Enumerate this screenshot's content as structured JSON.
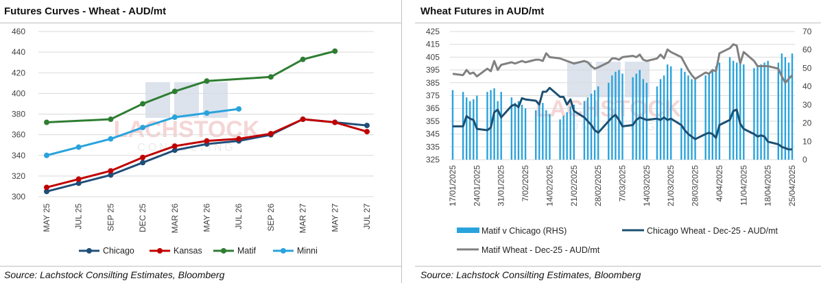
{
  "left": {
    "title": "Futures Curves - Wheat - AUD/mt",
    "source": "Source: Lachstock Consilting Estimates, Bloomberg",
    "watermark": {
      "line1": "LACHSTOCK",
      "line2": "CONSULTING"
    },
    "chart_data": {
      "type": "line",
      "title": "Futures Curves - Wheat - AUD/mt",
      "categories": [
        "MAY 25",
        "JUL 25",
        "SEP 25",
        "DEC 25",
        "MAR 26",
        "MAY 26",
        "JUL 26",
        "SEP 26",
        "MAR 27",
        "MAY 27",
        "JUL 27"
      ],
      "ylim": [
        300,
        460
      ],
      "yticks": [
        300,
        320,
        340,
        360,
        380,
        400,
        420,
        440,
        460
      ],
      "grid": true,
      "legend_position": "bottom",
      "series": [
        {
          "name": "Chicago",
          "color": "#1f4e79",
          "values": [
            305,
            313,
            321,
            333,
            345,
            351,
            354,
            360,
            375,
            372,
            369
          ]
        },
        {
          "name": "Kansas",
          "color": "#c00000",
          "values": [
            309,
            317,
            325,
            338,
            349,
            354,
            356,
            361,
            375,
            372,
            363
          ]
        },
        {
          "name": "Matif",
          "color": "#2e7d32",
          "values": [
            372,
            null,
            375,
            390,
            402,
            412,
            null,
            416,
            433,
            441,
            null
          ]
        },
        {
          "name": "Minni",
          "color": "#29a3dc",
          "values": [
            340,
            348,
            356,
            367,
            377,
            381,
            385,
            null,
            null,
            null,
            null
          ]
        }
      ]
    }
  },
  "right": {
    "title": "Wheat Futures in AUD/mt",
    "source": "Source: Lachstock Consilting Estimates, Bloomberg",
    "watermark": {
      "line1": "LACHSTOCK",
      "line2": "CONSULTING"
    },
    "chart_data": {
      "type": "bar+line",
      "title": "Wheat Futures in AUD/mt",
      "x_start": "2025-01-17",
      "x_end": "2025-04-25",
      "xtick_labels": [
        "17/01/2025",
        "24/01/2025",
        "31/01/2025",
        "7/02/2025",
        "14/02/2025",
        "21/02/2025",
        "28/02/2025",
        "7/03/2025",
        "14/03/2025",
        "21/03/2025",
        "28/03/2025",
        "4/04/2025",
        "11/04/2025",
        "18/04/2025",
        "25/04/2025"
      ],
      "ylim_left": [
        325,
        425
      ],
      "yticks_left": [
        325,
        335,
        345,
        355,
        365,
        375,
        385,
        395,
        405,
        415,
        425
      ],
      "ylim_right": [
        0,
        70
      ],
      "yticks_right": [
        0,
        10,
        20,
        30,
        40,
        50,
        60,
        70
      ],
      "grid": true,
      "legend_position": "bottom",
      "series": [
        {
          "name": "Matif v Chicago (RHS)",
          "axis": "right",
          "kind": "bar",
          "color": "#29a3dc",
          "points": [
            [
              "2025-01-17",
              38
            ],
            [
              "2025-01-20",
              37
            ],
            [
              "2025-01-21",
              34
            ],
            [
              "2025-01-22",
              32
            ],
            [
              "2025-01-23",
              33
            ],
            [
              "2025-01-24",
              35
            ],
            [
              "2025-01-27",
              37
            ],
            [
              "2025-01-28",
              38
            ],
            [
              "2025-01-29",
              39
            ],
            [
              "2025-01-30",
              32
            ],
            [
              "2025-01-31",
              37
            ],
            [
              "2025-02-03",
              34
            ],
            [
              "2025-02-04",
              31
            ],
            [
              "2025-02-05",
              32
            ],
            [
              "2025-02-06",
              30
            ],
            [
              "2025-02-07",
              28
            ],
            [
              "2025-02-10",
              27
            ],
            [
              "2025-02-11",
              30
            ],
            [
              "2025-02-12",
              31
            ],
            [
              "2025-02-13",
              27
            ],
            [
              "2025-02-14",
              25
            ],
            [
              "2025-02-17",
              22
            ],
            [
              "2025-02-18",
              24
            ],
            [
              "2025-02-19",
              26
            ],
            [
              "2025-02-20",
              29
            ],
            [
              "2025-02-21",
              30
            ],
            [
              "2025-02-24",
              32
            ],
            [
              "2025-02-25",
              34
            ],
            [
              "2025-02-26",
              36
            ],
            [
              "2025-02-27",
              38
            ],
            [
              "2025-02-28",
              40
            ],
            [
              "2025-03-03",
              42
            ],
            [
              "2025-03-04",
              46
            ],
            [
              "2025-03-05",
              48
            ],
            [
              "2025-03-06",
              49
            ],
            [
              "2025-03-07",
              47
            ],
            [
              "2025-03-10",
              45
            ],
            [
              "2025-03-11",
              47
            ],
            [
              "2025-03-12",
              49
            ],
            [
              "2025-03-13",
              44
            ],
            [
              "2025-03-14",
              42
            ],
            [
              "2025-03-17",
              40
            ],
            [
              "2025-03-18",
              44
            ],
            [
              "2025-03-19",
              46
            ],
            [
              "2025-03-20",
              52
            ],
            [
              "2025-03-21",
              51
            ],
            [
              "2025-03-24",
              50
            ],
            [
              "2025-03-25",
              48
            ],
            [
              "2025-03-26",
              46
            ],
            [
              "2025-03-27",
              44
            ],
            [
              "2025-03-28",
              45
            ],
            [
              "2025-03-31",
              46
            ],
            [
              "2025-04-01",
              47
            ],
            [
              "2025-04-02",
              49
            ],
            [
              "2025-04-03",
              51
            ],
            [
              "2025-04-04",
              53
            ],
            [
              "2025-04-07",
              56
            ],
            [
              "2025-04-08",
              54
            ],
            [
              "2025-04-09",
              53
            ],
            [
              "2025-04-10",
              55
            ],
            [
              "2025-04-11",
              52
            ],
            [
              "2025-04-14",
              50
            ],
            [
              "2025-04-15",
              51
            ],
            [
              "2025-04-16",
              52
            ],
            [
              "2025-04-17",
              53
            ],
            [
              "2025-04-18",
              54
            ],
            [
              "2025-04-21",
              53
            ],
            [
              "2025-04-22",
              58
            ],
            [
              "2025-04-23",
              56
            ],
            [
              "2025-04-24",
              53
            ],
            [
              "2025-04-25",
              58
            ]
          ]
        },
        {
          "name": "Chicago Wheat - Dec-25 - AUD/mt",
          "axis": "left",
          "kind": "line",
          "color": "#1b4f72",
          "points": [
            [
              "2025-01-17",
              351
            ],
            [
              "2025-01-20",
              351
            ],
            [
              "2025-01-21",
              359
            ],
            [
              "2025-01-22",
              357
            ],
            [
              "2025-01-23",
              356
            ],
            [
              "2025-01-24",
              349
            ],
            [
              "2025-01-27",
              348
            ],
            [
              "2025-01-28",
              350
            ],
            [
              "2025-01-29",
              362
            ],
            [
              "2025-01-30",
              364
            ],
            [
              "2025-01-31",
              358
            ],
            [
              "2025-02-03",
              367
            ],
            [
              "2025-02-04",
              368
            ],
            [
              "2025-02-05",
              366
            ],
            [
              "2025-02-06",
              373
            ],
            [
              "2025-02-07",
              372
            ],
            [
              "2025-02-10",
              371
            ],
            [
              "2025-02-11",
              368
            ],
            [
              "2025-02-12",
              378
            ],
            [
              "2025-02-13",
              378
            ],
            [
              "2025-02-14",
              381
            ],
            [
              "2025-02-17",
              374
            ],
            [
              "2025-02-18",
              374
            ],
            [
              "2025-02-19",
              368
            ],
            [
              "2025-02-20",
              372
            ],
            [
              "2025-02-21",
              363
            ],
            [
              "2025-02-24",
              358
            ],
            [
              "2025-02-25",
              355
            ],
            [
              "2025-02-26",
              352
            ],
            [
              "2025-02-27",
              348
            ],
            [
              "2025-02-28",
              346
            ],
            [
              "2025-03-03",
              355
            ],
            [
              "2025-03-04",
              358
            ],
            [
              "2025-03-05",
              360
            ],
            [
              "2025-03-06",
              356
            ],
            [
              "2025-03-07",
              351
            ],
            [
              "2025-03-10",
              352
            ],
            [
              "2025-03-11",
              356
            ],
            [
              "2025-03-12",
              358
            ],
            [
              "2025-03-13",
              357
            ],
            [
              "2025-03-14",
              356
            ],
            [
              "2025-03-17",
              357
            ],
            [
              "2025-03-18",
              356
            ],
            [
              "2025-03-19",
              358
            ],
            [
              "2025-03-20",
              356
            ],
            [
              "2025-03-21",
              357
            ],
            [
              "2025-03-24",
              352
            ],
            [
              "2025-03-25",
              348
            ],
            [
              "2025-03-26",
              345
            ],
            [
              "2025-03-27",
              343
            ],
            [
              "2025-03-28",
              341
            ],
            [
              "2025-03-31",
              345
            ],
            [
              "2025-04-01",
              346
            ],
            [
              "2025-04-02",
              345
            ],
            [
              "2025-04-03",
              342
            ],
            [
              "2025-04-04",
              352
            ],
            [
              "2025-04-07",
              356
            ],
            [
              "2025-04-08",
              363
            ],
            [
              "2025-04-09",
              364
            ],
            [
              "2025-04-10",
              353
            ],
            [
              "2025-04-11",
              349
            ],
            [
              "2025-04-14",
              345
            ],
            [
              "2025-04-15",
              343
            ],
            [
              "2025-04-16",
              344
            ],
            [
              "2025-04-17",
              343
            ],
            [
              "2025-04-18",
              339
            ],
            [
              "2025-04-21",
              337
            ],
            [
              "2025-04-22",
              335
            ],
            [
              "2025-04-23",
              334
            ],
            [
              "2025-04-24",
              333
            ],
            [
              "2025-04-25",
              333
            ]
          ]
        },
        {
          "name": "Matif Wheat - Dec-25 - AUD/mt",
          "axis": "left",
          "kind": "line",
          "color": "#808080",
          "points": [
            [
              "2025-01-17",
              392
            ],
            [
              "2025-01-20",
              391
            ],
            [
              "2025-01-21",
              395
            ],
            [
              "2025-01-22",
              392
            ],
            [
              "2025-01-23",
              393
            ],
            [
              "2025-01-24",
              390
            ],
            [
              "2025-01-27",
              396
            ],
            [
              "2025-01-28",
              394
            ],
            [
              "2025-01-29",
              402
            ],
            [
              "2025-01-30",
              395
            ],
            [
              "2025-01-31",
              399
            ],
            [
              "2025-02-03",
              401
            ],
            [
              "2025-02-04",
              400
            ],
            [
              "2025-02-05",
              401
            ],
            [
              "2025-02-06",
              402
            ],
            [
              "2025-02-07",
              401
            ],
            [
              "2025-02-10",
              403
            ],
            [
              "2025-02-11",
              403
            ],
            [
              "2025-02-12",
              402
            ],
            [
              "2025-02-13",
              408
            ],
            [
              "2025-02-14",
              405
            ],
            [
              "2025-02-17",
              404
            ],
            [
              "2025-02-18",
              403
            ],
            [
              "2025-02-19",
              402
            ],
            [
              "2025-02-20",
              401
            ],
            [
              "2025-02-21",
              400
            ],
            [
              "2025-02-24",
              402
            ],
            [
              "2025-02-25",
              401
            ],
            [
              "2025-02-26",
              398
            ],
            [
              "2025-02-27",
              396
            ],
            [
              "2025-02-28",
              397
            ],
            [
              "2025-03-03",
              401
            ],
            [
              "2025-03-04",
              404
            ],
            [
              "2025-03-05",
              404
            ],
            [
              "2025-03-06",
              403
            ],
            [
              "2025-03-07",
              405
            ],
            [
              "2025-03-10",
              406
            ],
            [
              "2025-03-11",
              405
            ],
            [
              "2025-03-12",
              407
            ],
            [
              "2025-03-13",
              403
            ],
            [
              "2025-03-14",
              402
            ],
            [
              "2025-03-17",
              404
            ],
            [
              "2025-03-18",
              407
            ],
            [
              "2025-03-19",
              404
            ],
            [
              "2025-03-20",
              411
            ],
            [
              "2025-03-21",
              409
            ],
            [
              "2025-03-24",
              405
            ],
            [
              "2025-03-25",
              400
            ],
            [
              "2025-03-26",
              395
            ],
            [
              "2025-03-27",
              391
            ],
            [
              "2025-03-28",
              388
            ],
            [
              "2025-03-31",
              393
            ],
            [
              "2025-04-01",
              392
            ],
            [
              "2025-04-02",
              395
            ],
            [
              "2025-04-03",
              394
            ],
            [
              "2025-04-04",
              408
            ],
            [
              "2025-04-07",
              412
            ],
            [
              "2025-04-08",
              415
            ],
            [
              "2025-04-09",
              414
            ],
            [
              "2025-04-10",
              400
            ],
            [
              "2025-04-11",
              409
            ],
            [
              "2025-04-14",
              402
            ],
            [
              "2025-04-15",
              398
            ],
            [
              "2025-04-16",
              398
            ],
            [
              "2025-04-17",
              398
            ],
            [
              "2025-04-18",
              398
            ],
            [
              "2025-04-21",
              396
            ],
            [
              "2025-04-22",
              390
            ],
            [
              "2025-04-23",
              385
            ],
            [
              "2025-04-24",
              388
            ],
            [
              "2025-04-25",
              391
            ]
          ]
        }
      ]
    }
  }
}
